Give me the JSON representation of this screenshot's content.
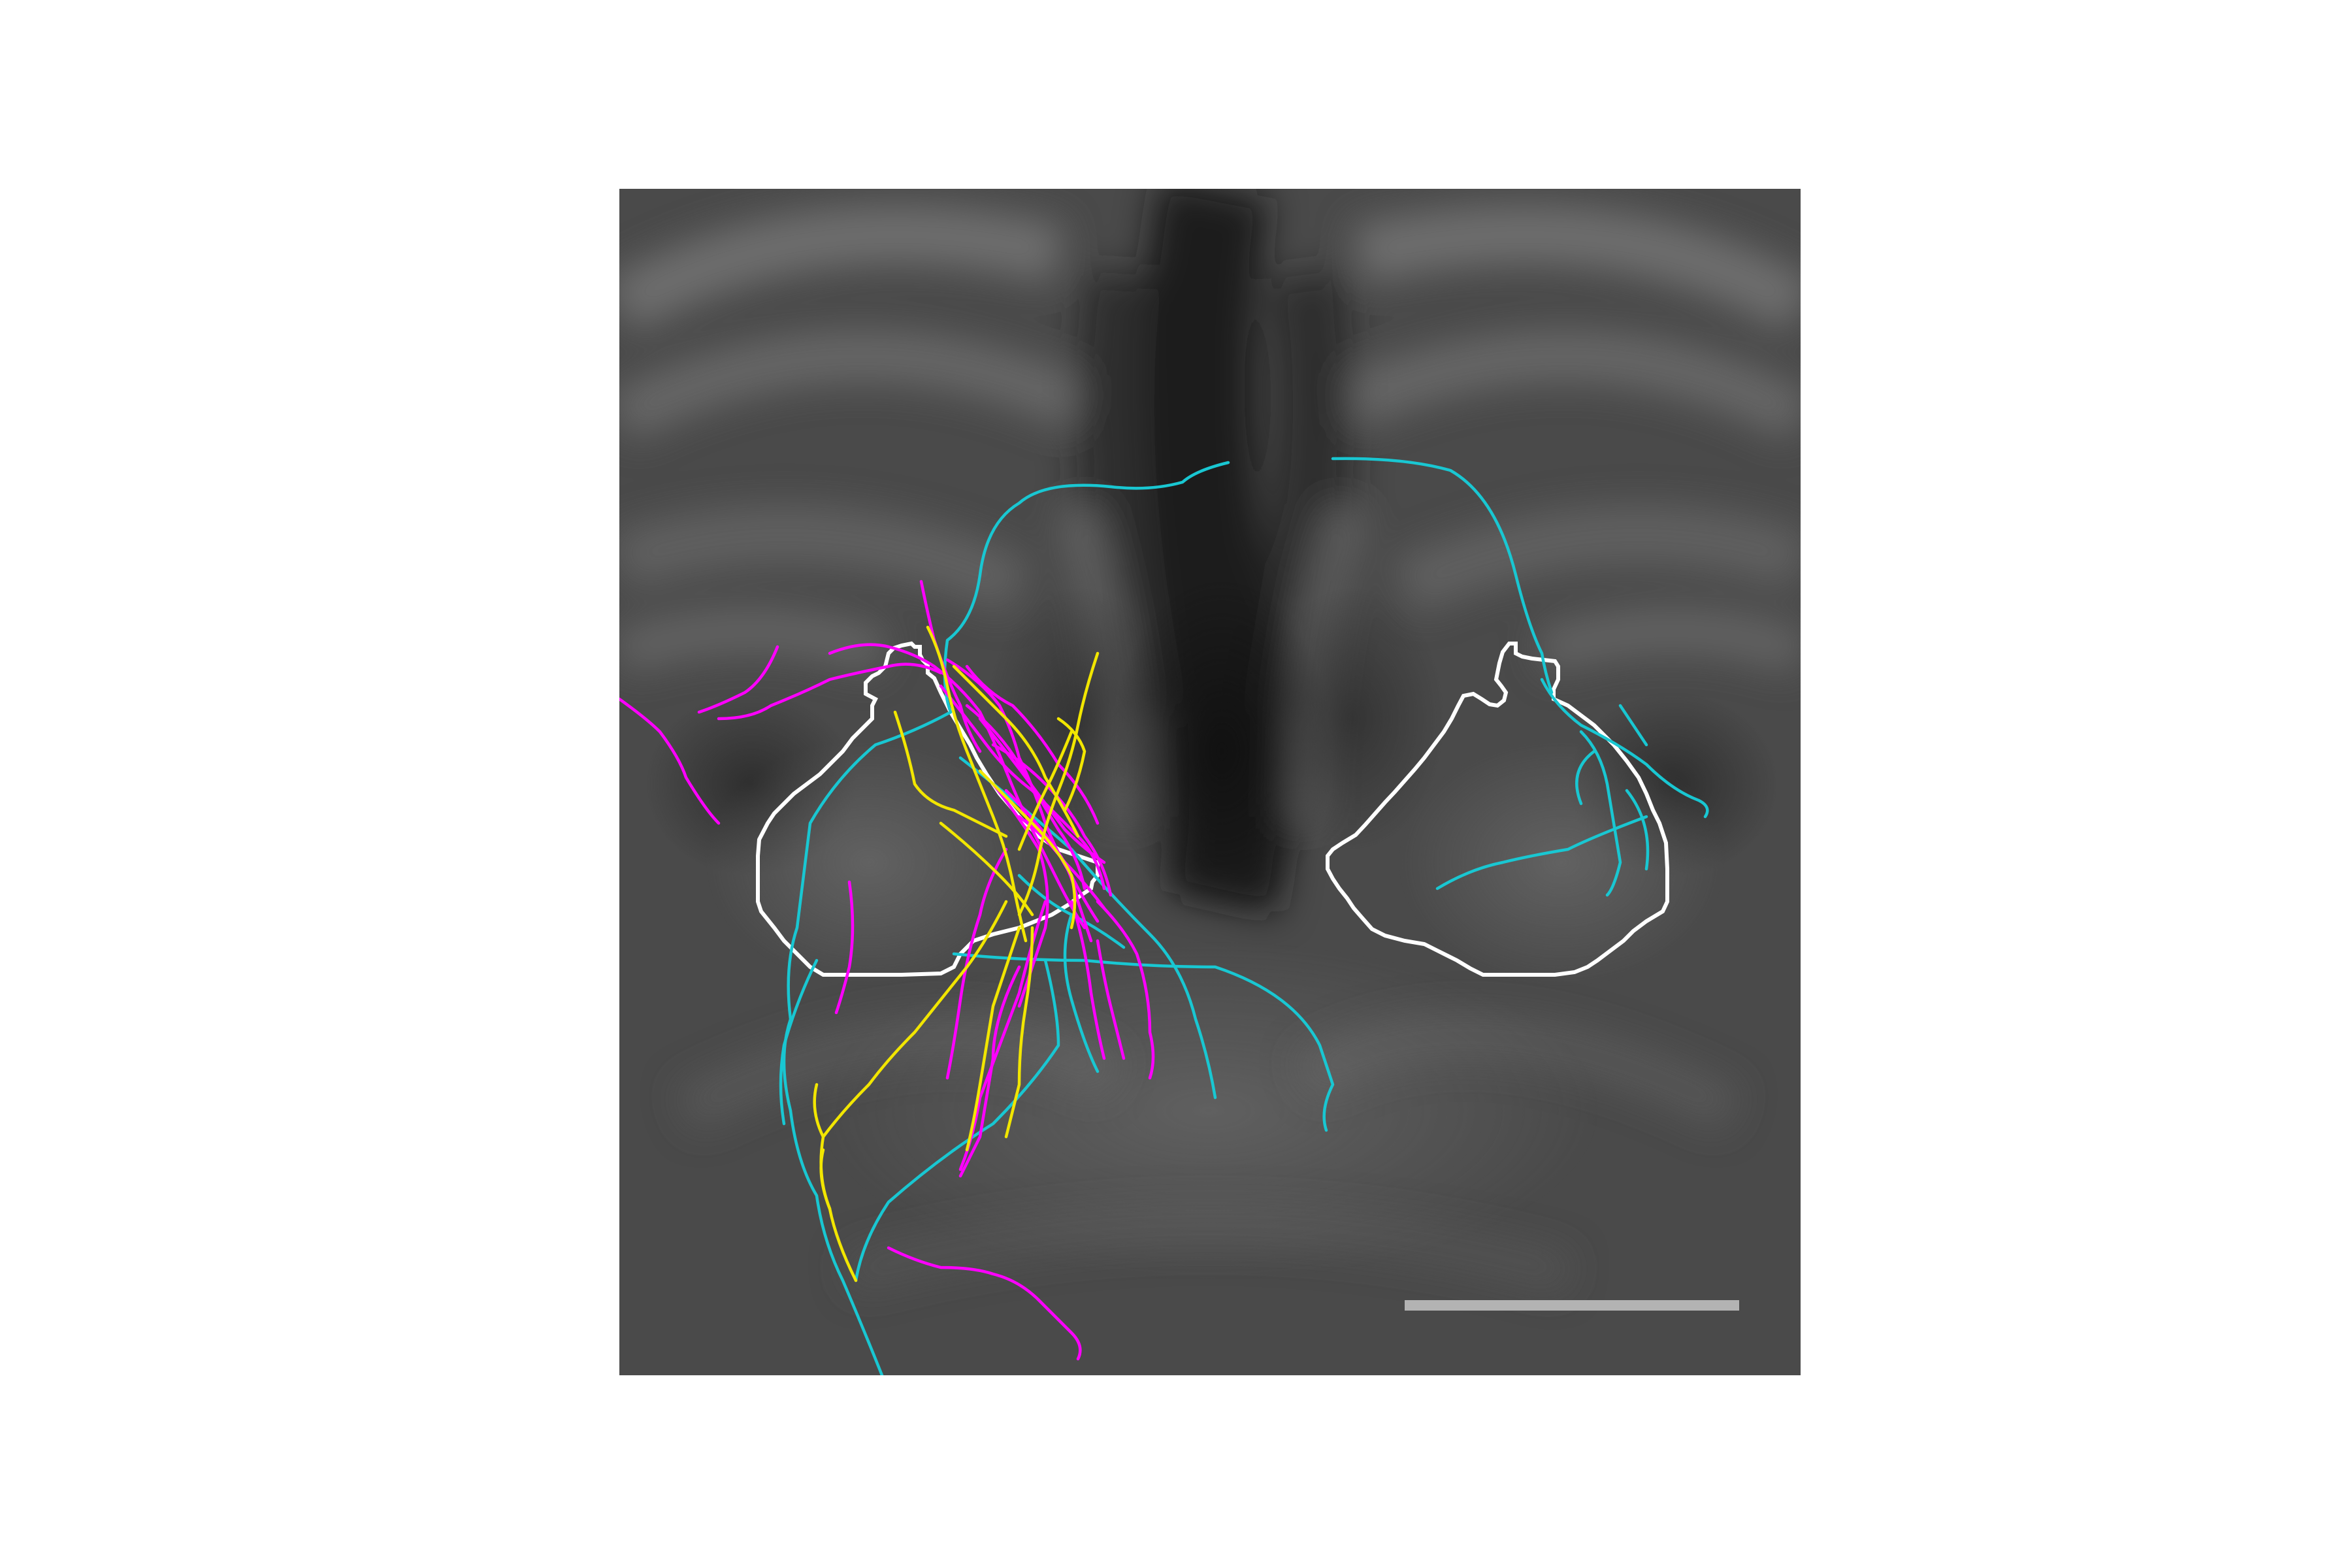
{
  "figure": {
    "background_color": "#ffffff",
    "panel_background": "#4a4a4a",
    "region_outline_color": "#ffffff",
    "scale_bar_color": "#b3b3b3",
    "trace_colors": {
      "cyan": "#19c7d2",
      "magenta": "#ff00ff",
      "yellow": "#f2e600"
    },
    "regions": [
      {
        "name": "left-region-outline"
      },
      {
        "name": "right-region-outline"
      }
    ],
    "neuron_traces": [
      {
        "name": "cyan-neuron-trace",
        "color_key": "cyan"
      },
      {
        "name": "magenta-neuron-trace",
        "color_key": "magenta"
      },
      {
        "name": "yellow-neuron-trace",
        "color_key": "yellow"
      }
    ]
  }
}
